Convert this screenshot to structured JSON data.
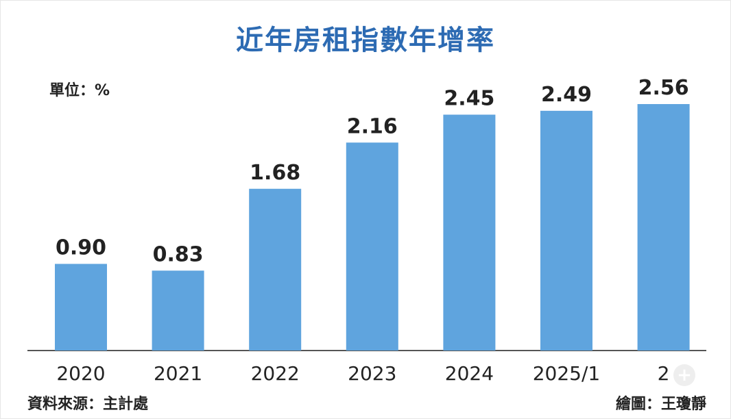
{
  "title": "近年房租指數年增率",
  "unit_label": "單位：%",
  "source": "資料來源：主計處",
  "credit": "繪圖：王瓊靜",
  "colors": {
    "title": "#2d6bb3",
    "bar": "#5fa4de",
    "axis": "#555555",
    "text": "#222222"
  },
  "zoom_icon": "+",
  "chart_data": {
    "type": "bar",
    "title": "近年房租指數年增率",
    "ylabel": "",
    "unit": "%",
    "categories": [
      "2020",
      "2021",
      "2022",
      "2023",
      "2024",
      "2025/1",
      "2"
    ],
    "values": [
      0.9,
      0.83,
      1.68,
      2.16,
      2.45,
      2.49,
      2.56
    ],
    "value_labels": [
      "0.90",
      "0.83",
      "1.68",
      "2.16",
      "2.45",
      "2.49",
      "2.56"
    ],
    "ylim": [
      0,
      2.56
    ],
    "grid": false,
    "legend": "none"
  }
}
